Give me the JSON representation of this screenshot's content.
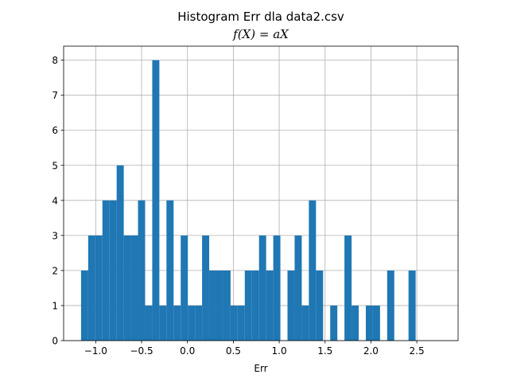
{
  "chart_data": {
    "type": "bar",
    "title": "Histogram Err dla data2.csv",
    "subtitle": "f(X) = aX",
    "xlabel": "Err",
    "ylabel": "",
    "xlim": [
      -1.35,
      2.95
    ],
    "ylim": [
      0,
      8.4
    ],
    "xticks": [
      -1.0,
      -0.5,
      0.0,
      0.5,
      1.0,
      1.5,
      2.0,
      2.5
    ],
    "xtick_labels": [
      "−1.0",
      "−0.5",
      "0.0",
      "0.5",
      "1.0",
      "1.5",
      "2.0",
      "2.5"
    ],
    "yticks": [
      0,
      1,
      2,
      3,
      4,
      5,
      6,
      7,
      8
    ],
    "ytick_labels": [
      "0",
      "1",
      "2",
      "3",
      "4",
      "5",
      "6",
      "7",
      "8"
    ],
    "grid": true,
    "bar_color": "#1f77b4",
    "bins": {
      "start": -1.16,
      "width": 0.0776,
      "counts": [
        2,
        3,
        3,
        4,
        4,
        5,
        3,
        3,
        4,
        1,
        8,
        1,
        4,
        1,
        3,
        1,
        1,
        3,
        2,
        2,
        2,
        1,
        1,
        2,
        2,
        3,
        2,
        3,
        0,
        2,
        3,
        1,
        4,
        2,
        0,
        1,
        0,
        3,
        1,
        0,
        1,
        1,
        0,
        2,
        0,
        0,
        2
      ]
    }
  }
}
